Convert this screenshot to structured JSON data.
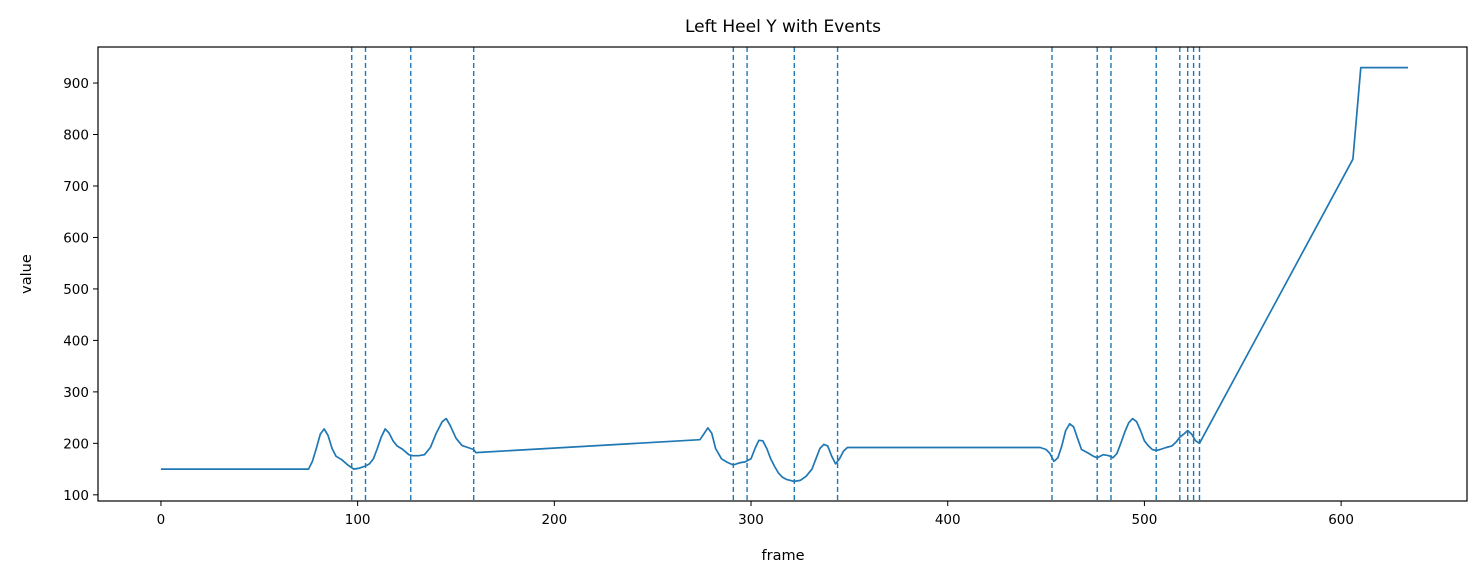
{
  "chart_data": {
    "type": "line",
    "title": "Left Heel Y with Events",
    "xlabel": "frame",
    "ylabel": "value",
    "xlim": [
      -32,
      664
    ],
    "ylim": [
      88,
      970
    ],
    "xticks": [
      0,
      100,
      200,
      300,
      400,
      500,
      600
    ],
    "yticks": [
      100,
      200,
      300,
      400,
      500,
      600,
      700,
      800,
      900
    ],
    "grid": false,
    "legend": "none",
    "line_color": "#1f77b4",
    "event_style": "dashed",
    "series": [
      {
        "x": [
          0,
          75,
          77,
          79,
          81,
          83,
          85,
          87,
          89,
          92,
          95,
          98,
          101,
          104,
          106,
          108,
          110,
          112,
          114,
          116,
          118,
          120,
          123,
          126,
          128,
          131,
          134,
          137,
          140,
          143,
          145,
          147,
          150,
          153,
          156,
          159,
          160,
          274,
          276,
          278,
          280,
          282,
          285,
          288,
          291,
          294,
          297,
          300,
          302,
          304,
          306,
          308,
          310,
          312,
          314,
          316,
          318,
          320,
          322,
          325,
          328,
          331,
          333,
          335,
          337,
          339,
          341,
          343,
          345,
          347,
          349,
          352,
          447,
          450,
          452,
          454,
          456,
          458,
          460,
          462,
          464,
          466,
          468,
          471,
          474,
          476,
          479,
          482,
          484,
          486,
          488,
          490,
          492,
          494,
          496,
          498,
          500,
          502,
          504,
          506,
          508,
          511,
          514,
          516,
          518,
          520,
          522,
          524,
          526,
          528,
          606,
          610,
          634
        ],
        "y": [
          150,
          150,
          165,
          190,
          218,
          228,
          215,
          190,
          175,
          168,
          158,
          150,
          152,
          156,
          160,
          170,
          190,
          212,
          228,
          220,
          205,
          195,
          188,
          178,
          176,
          176,
          178,
          192,
          220,
          242,
          248,
          235,
          210,
          196,
          192,
          188,
          182,
          207,
          218,
          230,
          220,
          190,
          170,
          163,
          158,
          162,
          164,
          170,
          190,
          206,
          205,
          190,
          170,
          155,
          142,
          134,
          130,
          128,
          126,
          128,
          136,
          150,
          170,
          190,
          198,
          195,
          175,
          160,
          170,
          185,
          192,
          192,
          192,
          188,
          180,
          165,
          172,
          195,
          225,
          238,
          232,
          210,
          188,
          182,
          175,
          172,
          178,
          176,
          172,
          180,
          200,
          222,
          240,
          248,
          242,
          225,
          205,
          195,
          188,
          186,
          188,
          192,
          195,
          202,
          212,
          218,
          225,
          218,
          205,
          200,
          752,
          930,
          930
        ]
      }
    ],
    "events": [
      97,
      104,
      127,
      159,
      291,
      298,
      322,
      344,
      453,
      476,
      483,
      506,
      518,
      522,
      525,
      528
    ]
  }
}
